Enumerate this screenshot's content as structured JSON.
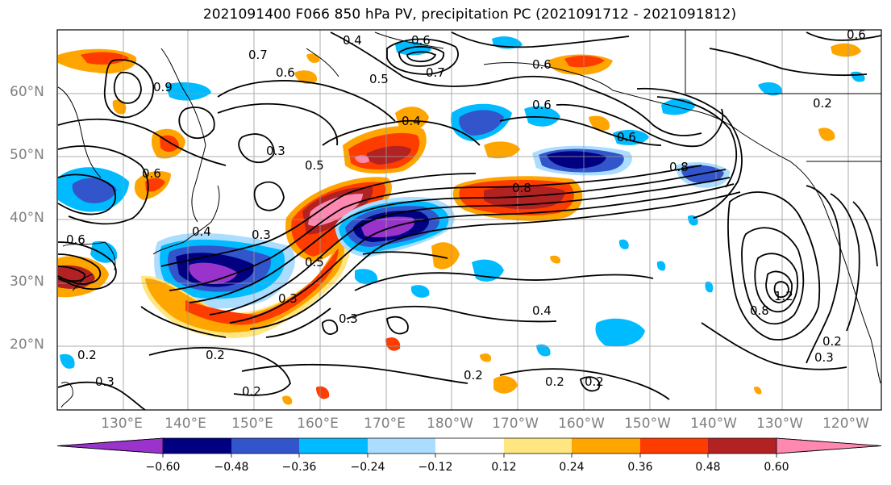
{
  "title": "2021091400 F066 850 hPa PV, precipitation PC (2021091712 - 2021091812)",
  "map": {
    "projection": "cylindrical",
    "lon_range": [
      120,
      245
    ],
    "lat_range": [
      10,
      70
    ],
    "lat_labels": [
      "60°N",
      "50°N",
      "40°N",
      "30°N",
      "20°N"
    ],
    "lon_labels": [
      "130°E",
      "140°E",
      "150°E",
      "160°E",
      "170°E",
      "180°W",
      "170°W",
      "160°W",
      "150°W",
      "140°W",
      "130°W",
      "120°W"
    ],
    "contour_labels": [
      "0.7",
      "0.6",
      "0.4",
      "0.5",
      "0.6",
      "0.6",
      "0.7",
      "0.4",
      "0.6",
      "0.2",
      "0.6",
      "0.6",
      "0.8",
      "0.3",
      "0.5",
      "0.8",
      "0.6",
      "0.4",
      "0.3",
      "0.5",
      "0.3",
      "0.6",
      "0.4",
      "0.3",
      "0.2",
      "0.2",
      "0.3",
      "0.2",
      "0.2",
      "0.2",
      "1.2",
      "0.8",
      "0.2",
      "0.3",
      "0.2",
      "0.9"
    ],
    "contour_field": "850 hPa PV",
    "shaded_field": "precipitation PC"
  },
  "colorbar": {
    "tick_labels": [
      "−0.60",
      "−0.48",
      "−0.36",
      "−0.24",
      "−0.12",
      "0.12",
      "0.24",
      "0.36",
      "0.48",
      "0.60"
    ],
    "colors": [
      "#9933cc",
      "#000080",
      "#3355cc",
      "#00bbff",
      "#aaddff",
      "#ffffff",
      "#ffe680",
      "#ffa500",
      "#ff3c00",
      "#b22222",
      "#ff88b0",
      "#ffffff"
    ],
    "extend": "both"
  },
  "colors": {
    "grid": "#999999",
    "contour": "#000000",
    "coast": "#000000",
    "label_gray": "#808080"
  }
}
